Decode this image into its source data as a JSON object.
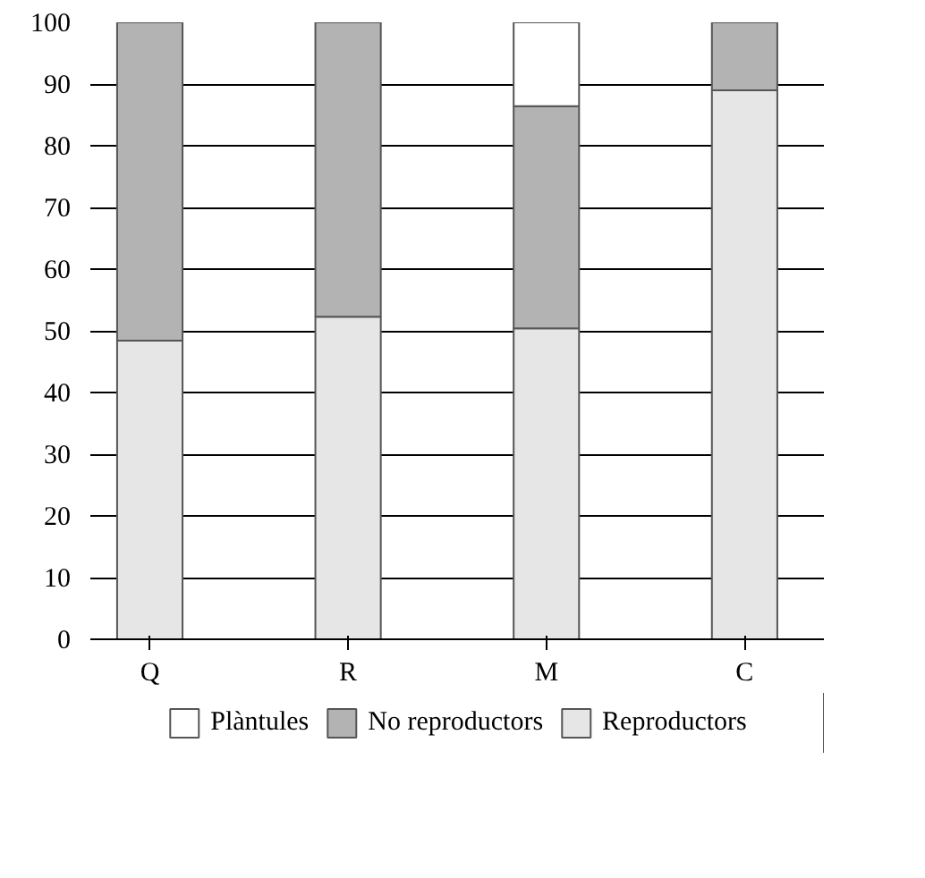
{
  "chart_data": {
    "type": "bar",
    "stacked": true,
    "categories": [
      "Q",
      "R",
      "M",
      "C"
    ],
    "series": [
      {
        "name": "Reproductors",
        "color": "#e6e6e6",
        "values": [
          48.4,
          52.3,
          50.4,
          89.0
        ]
      },
      {
        "name": "No reproductors",
        "color": "#b3b3b3",
        "values": [
          51.6,
          47.7,
          36.0,
          11.0
        ]
      },
      {
        "name": "Plàntules",
        "color": "#ffffff",
        "values": [
          0,
          0,
          13.6,
          0
        ]
      }
    ],
    "ylim": [
      0,
      100
    ],
    "yticks": [
      0,
      10,
      20,
      30,
      40,
      50,
      60,
      70,
      80,
      90,
      100
    ],
    "grid": "y",
    "legend": "bottom"
  }
}
